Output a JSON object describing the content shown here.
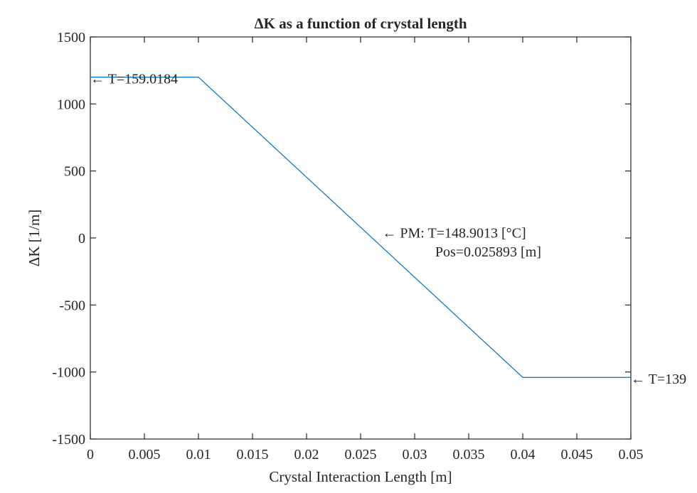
{
  "chart_data": {
    "type": "line",
    "title": "ΔK as a function of crystal length",
    "xlabel": "Crystal Interaction Length [m]",
    "ylabel": "ΔK [1/m]",
    "xlim": [
      0,
      0.05
    ],
    "ylim": [
      -1500,
      1500
    ],
    "x_ticks": [
      0,
      0.005,
      0.01,
      0.015,
      0.02,
      0.025,
      0.03,
      0.035,
      0.04,
      0.045,
      0.05
    ],
    "x_tick_labels": [
      "0",
      "0.005",
      "0.01",
      "0.015",
      "0.02",
      "0.025",
      "0.03",
      "0.035",
      "0.04",
      "0.045",
      "0.05"
    ],
    "y_ticks": [
      -1500,
      -1000,
      -500,
      0,
      500,
      1000,
      1500
    ],
    "y_tick_labels": [
      "-1500",
      "-1000",
      "-500",
      "0",
      "500",
      "1000",
      "1500"
    ],
    "grid": false,
    "series": [
      {
        "color": "#0072BD",
        "x": [
          0,
          0.01,
          0.04,
          0.05
        ],
        "y": [
          1200,
          1200,
          -1040,
          -1040
        ]
      }
    ],
    "annotations": [
      {
        "text": "← T=159.0184",
        "x": 0,
        "y": 1190
      },
      {
        "text": "← PM: T=148.9013 [°C]",
        "x": 0.027,
        "y": 40
      },
      {
        "text": "Pos=0.025893 [m]",
        "x": 0.0319,
        "y": -100
      },
      {
        "text": "← T=139",
        "x": 0.05,
        "y": -1050
      }
    ]
  }
}
